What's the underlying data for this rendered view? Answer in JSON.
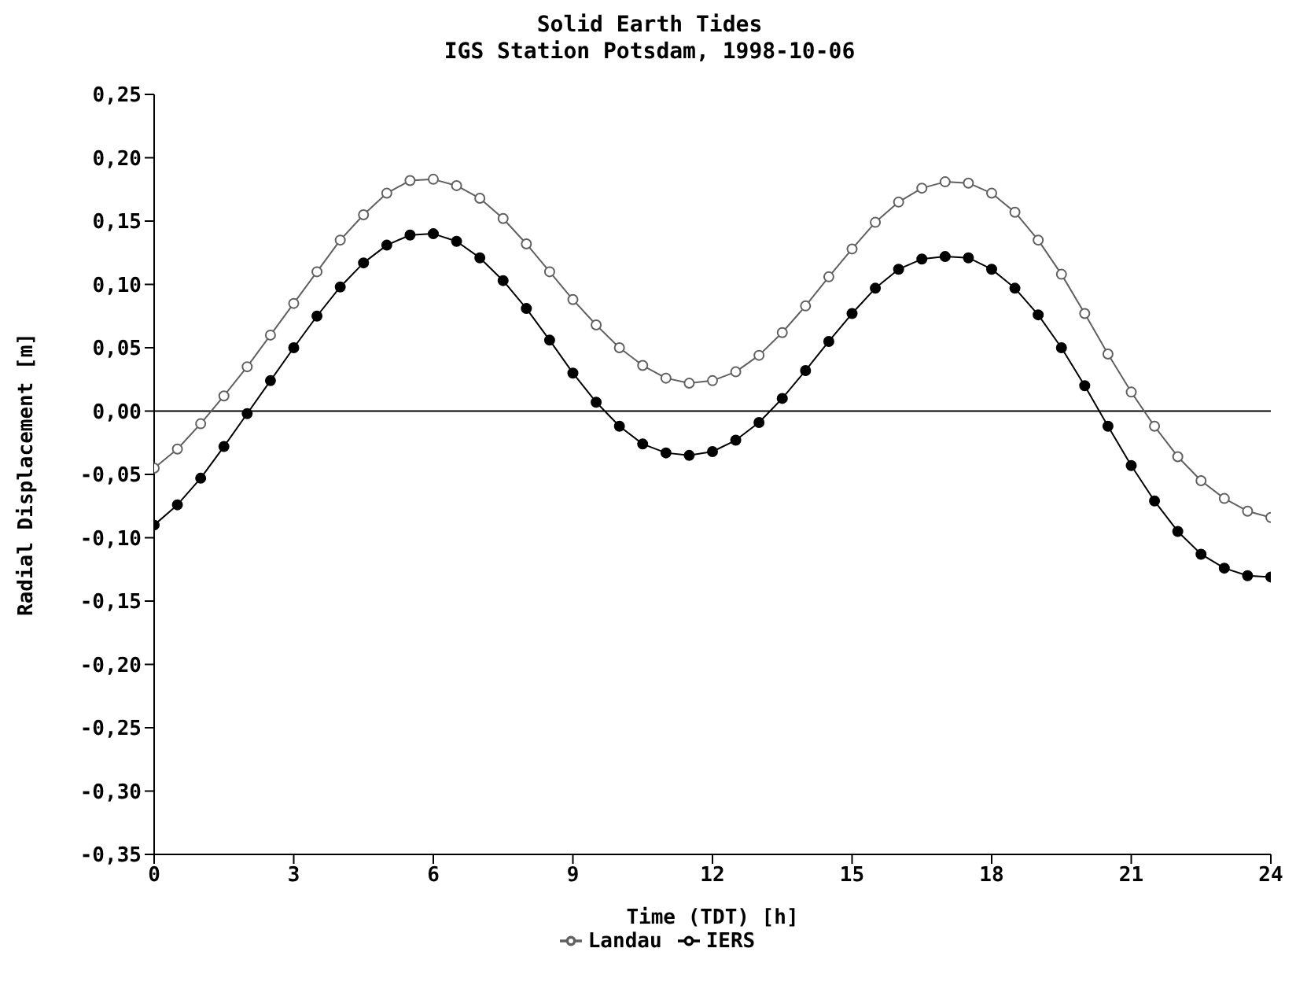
{
  "chart_data": {
    "type": "line",
    "title": "Solid Earth Tides",
    "subtitle": "IGS Station Potsdam, 1998-10-06",
    "xlabel": "Time (TDT) [h]",
    "ylabel": "Radial Displacement [m]",
    "x": [
      0,
      0.5,
      1,
      1.5,
      2,
      2.5,
      3,
      3.5,
      4,
      4.5,
      5,
      5.5,
      6,
      6.5,
      7,
      7.5,
      8,
      8.5,
      9,
      9.5,
      10,
      10.5,
      11,
      11.5,
      12,
      12.5,
      13,
      13.5,
      14,
      14.5,
      15,
      15.5,
      16,
      16.5,
      17,
      17.5,
      18,
      18.5,
      19,
      19.5,
      20,
      20.5,
      21,
      21.5,
      22,
      22.5,
      23,
      23.5,
      24
    ],
    "series": [
      {
        "name": "Landau",
        "color": "#606060",
        "values": [
          -0.045,
          -0.03,
          -0.01,
          0.012,
          0.035,
          0.06,
          0.085,
          0.11,
          0.135,
          0.155,
          0.172,
          0.182,
          0.183,
          0.178,
          0.168,
          0.152,
          0.132,
          0.11,
          0.088,
          0.068,
          0.05,
          0.036,
          0.026,
          0.022,
          0.024,
          0.031,
          0.044,
          0.062,
          0.083,
          0.106,
          0.128,
          0.149,
          0.165,
          0.176,
          0.181,
          0.18,
          0.172,
          0.157,
          0.135,
          0.108,
          0.077,
          0.045,
          0.015,
          -0.012,
          -0.036,
          -0.055,
          -0.069,
          -0.079,
          -0.084
        ]
      },
      {
        "name": "IERS",
        "color": "#000000",
        "values": [
          -0.09,
          -0.074,
          -0.053,
          -0.028,
          -0.002,
          0.024,
          0.05,
          0.075,
          0.098,
          0.117,
          0.131,
          0.139,
          0.14,
          0.134,
          0.121,
          0.103,
          0.081,
          0.056,
          0.03,
          0.007,
          -0.012,
          -0.026,
          -0.033,
          -0.035,
          -0.032,
          -0.023,
          -0.009,
          0.01,
          0.032,
          0.055,
          0.077,
          0.097,
          0.112,
          0.12,
          0.122,
          0.121,
          0.112,
          0.097,
          0.076,
          0.05,
          0.02,
          -0.012,
          -0.043,
          -0.071,
          -0.095,
          -0.113,
          -0.124,
          -0.13,
          -0.131
        ]
      }
    ],
    "xlim": [
      0,
      24
    ],
    "xticks": [
      0,
      3,
      6,
      9,
      12,
      15,
      18,
      21,
      24
    ],
    "ylim": [
      -0.35,
      0.25
    ],
    "yticks": [
      {
        "value": -0.35,
        "label": "-0,35"
      },
      {
        "value": -0.3,
        "label": "-0,30"
      },
      {
        "value": -0.25,
        "label": "-0,25"
      },
      {
        "value": -0.2,
        "label": "-0,20"
      },
      {
        "value": -0.15,
        "label": "-0,15"
      },
      {
        "value": -0.1,
        "label": "-0,10"
      },
      {
        "value": -0.05,
        "label": "-0,05"
      },
      {
        "value": 0,
        "label": "0,00"
      },
      {
        "value": 0.05,
        "label": "0,05"
      },
      {
        "value": 0.1,
        "label": "0,10"
      },
      {
        "value": 0.15,
        "label": "0,15"
      },
      {
        "value": 0.2,
        "label": "0,20"
      },
      {
        "value": 0.25,
        "label": "0,25"
      }
    ],
    "ref_lines": [
      {
        "axis": "y",
        "value": 0,
        "color": "#000000"
      }
    ],
    "marker": "circle",
    "line_style": "solid",
    "grid": false,
    "legend": "bottom"
  }
}
